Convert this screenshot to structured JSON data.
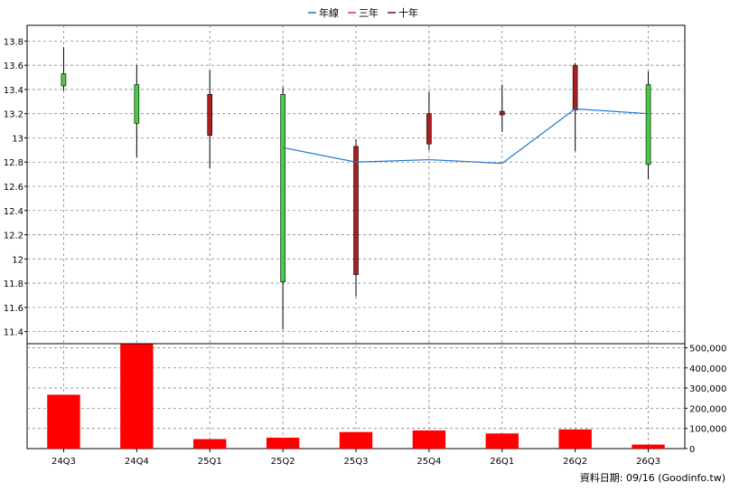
{
  "legend": [
    {
      "label": "年線",
      "color": "#1f77d0"
    },
    {
      "label": "三年",
      "color": "#e03030"
    },
    {
      "label": "十年",
      "color": "#800040"
    }
  ],
  "footer": "資料日期: 09/16  (Goodinfo.tw)",
  "colors": {
    "up": "#44cc44",
    "down": "#aa2020",
    "wick": "#000000",
    "volume": "#ff0000",
    "line": "#1f77d0",
    "grid": "#888888",
    "axis": "#000000"
  },
  "chart_data": [
    {
      "type": "candlestick",
      "categories": [
        "24Q3",
        "24Q4",
        "25Q1",
        "25Q2",
        "25Q3",
        "25Q4",
        "26Q1",
        "26Q2",
        "26Q3"
      ],
      "ohlc": [
        {
          "open": 13.43,
          "high": 13.75,
          "low": 13.39,
          "close": 13.53
        },
        {
          "open": 13.12,
          "high": 13.6,
          "low": 12.84,
          "close": 13.44
        },
        {
          "open": 13.36,
          "high": 13.56,
          "low": 12.75,
          "close": 13.02
        },
        {
          "open": 11.81,
          "high": 13.42,
          "low": 11.42,
          "close": 13.36
        },
        {
          "open": 12.93,
          "high": 12.99,
          "low": 11.69,
          "close": 11.87
        },
        {
          "open": 13.2,
          "high": 13.38,
          "low": 12.9,
          "close": 12.95
        },
        {
          "open": 13.22,
          "high": 13.44,
          "low": 13.05,
          "close": 13.19
        },
        {
          "open": 13.6,
          "high": 13.62,
          "low": 12.89,
          "close": 13.23
        },
        {
          "open": 12.78,
          "high": 13.55,
          "low": 12.66,
          "close": 13.44
        }
      ],
      "series": [
        {
          "name": "年線",
          "values": [
            null,
            null,
            null,
            12.92,
            12.8,
            12.82,
            12.79,
            13.24,
            13.2
          ]
        }
      ],
      "y_ticks": [
        "11.4",
        "11.6",
        "11.8",
        "12",
        "12.2",
        "12.4",
        "12.6",
        "12.8",
        "13",
        "13.2",
        "13.4",
        "13.6",
        "13.8"
      ],
      "ylim": [
        11.3,
        13.93
      ],
      "grid": true,
      "legend_position": "top-center"
    },
    {
      "type": "bar",
      "categories": [
        "24Q3",
        "24Q4",
        "25Q1",
        "25Q2",
        "25Q3",
        "25Q4",
        "26Q1",
        "26Q2",
        "26Q3"
      ],
      "values": [
        267000,
        518000,
        47000,
        54000,
        82000,
        90000,
        75000,
        95000,
        20000
      ],
      "y_ticks": [
        "0",
        "100,000",
        "200,000",
        "300,000",
        "400,000",
        "500,000"
      ],
      "ylim": [
        0,
        520000
      ],
      "grid": true
    }
  ]
}
